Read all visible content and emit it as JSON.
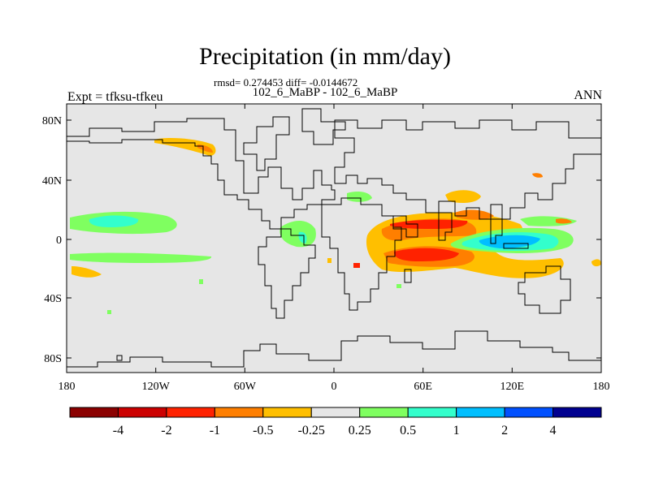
{
  "title": "Precipitation (in mm/day)",
  "stats": "rmsd= 0.274453 diff= -0.0144672",
  "subtitle": "102_6_MaBP - 102_6_MaBP",
  "left_label": "Expt = tfksu-tfkeu",
  "right_label": "ANN",
  "lat_ticks": [
    "80N",
    "40N",
    "0",
    "40S",
    "80S"
  ],
  "lon_ticks": [
    "180",
    "120W",
    "60W",
    "0",
    "60E",
    "120E",
    "180"
  ],
  "colorbar": {
    "colors": [
      "#8b0000",
      "#cc0000",
      "#ff2200",
      "#ff7f00",
      "#ffbf00",
      "#e6e6e6",
      "#7fff60",
      "#33ffcc",
      "#00bfff",
      "#0050ff",
      "#000090"
    ],
    "labels": [
      "-4",
      "-2",
      "-1",
      "-0.5",
      "-0.25",
      "0.25",
      "0.5",
      "1",
      "2",
      "4"
    ]
  },
  "colors": {
    "map_background": "#e6e6e6",
    "coastline": "#000000"
  }
}
